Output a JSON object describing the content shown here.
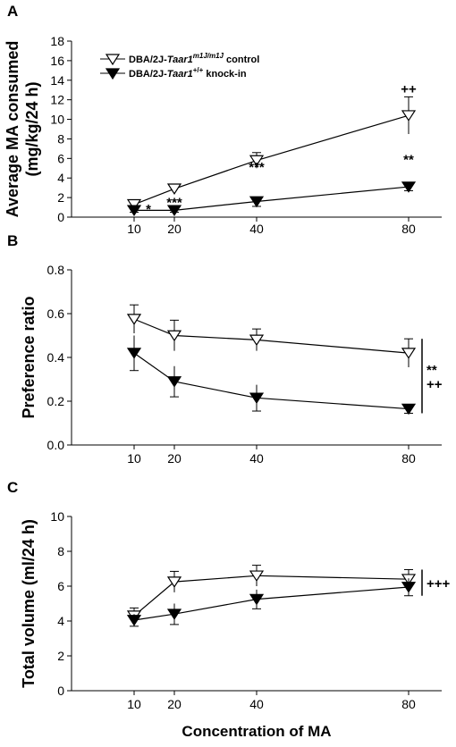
{
  "legend": {
    "control_prefix": "DBA/2J-",
    "control_italic": "Taar1",
    "control_sup": "m1J/m1J",
    "control_suffix": " control",
    "knockin_prefix": "DBA/2J-",
    "knockin_italic": "Taar1",
    "knockin_sup": "+/+",
    "knockin_suffix": " knock-in"
  },
  "xlabel": "Concentration of MA",
  "chart_data": [
    {
      "panel": "A",
      "type": "line",
      "ylabel_line1": "Average MA consumed",
      "ylabel_line2": "(mg/kg/24 h)",
      "ylim": [
        0,
        18
      ],
      "yticks": [
        0,
        2,
        4,
        6,
        8,
        10,
        12,
        14,
        16,
        18
      ],
      "x": [
        10,
        20,
        40,
        80
      ],
      "xticks": [
        "10",
        "20",
        "40",
        "80"
      ],
      "series": [
        {
          "name": "control",
          "marker": "open-triangle",
          "values": [
            1.3,
            2.9,
            5.8,
            10.4
          ],
          "err": [
            0.2,
            0.4,
            0.8,
            1.9
          ]
        },
        {
          "name": "knock-in",
          "marker": "filled-triangle",
          "values": [
            0.7,
            0.7,
            1.6,
            3.1
          ],
          "err": [
            0.2,
            0.2,
            0.5,
            0.4
          ]
        }
      ],
      "annotations": [
        {
          "text": "*",
          "x": 15,
          "y": 0.9
        },
        {
          "text": "***",
          "x": 20,
          "y": 1.6
        },
        {
          "text": "***",
          "x": 40,
          "y": 5.2
        },
        {
          "text": "**",
          "x": 80,
          "y": 6.0
        },
        {
          "text": "++",
          "x": 80,
          "y": 13.2
        }
      ]
    },
    {
      "panel": "B",
      "type": "line",
      "ylabel_line1": "Preference ratio",
      "ylim": [
        0,
        0.8
      ],
      "yticks": [
        "0.0",
        "0.2",
        "0.4",
        "0.6",
        "0.8"
      ],
      "x": [
        10,
        20,
        40,
        80
      ],
      "xticks": [
        "10",
        "20",
        "40",
        "80"
      ],
      "series": [
        {
          "name": "control",
          "marker": "open-triangle",
          "values": [
            0.575,
            0.5,
            0.48,
            0.42
          ],
          "err": [
            0.065,
            0.07,
            0.05,
            0.065
          ]
        },
        {
          "name": "knock-in",
          "marker": "filled-triangle",
          "values": [
            0.42,
            0.29,
            0.215,
            0.165
          ],
          "err": [
            0.08,
            0.07,
            0.06,
            0.02
          ]
        }
      ],
      "bracket_labels": [
        "**",
        "++"
      ]
    },
    {
      "panel": "C",
      "type": "line",
      "ylabel_line1": "Total volume (ml/24 h)",
      "ylim": [
        0,
        10
      ],
      "yticks": [
        0,
        2,
        4,
        6,
        8,
        10
      ],
      "x": [
        10,
        20,
        40,
        80
      ],
      "xticks": [
        "10",
        "20",
        "40",
        "80"
      ],
      "series": [
        {
          "name": "control",
          "marker": "open-triangle",
          "values": [
            4.3,
            6.25,
            6.6,
            6.4
          ],
          "err": [
            0.45,
            0.6,
            0.6,
            0.55
          ]
        },
        {
          "name": "knock-in",
          "marker": "filled-triangle",
          "values": [
            4.05,
            4.4,
            5.25,
            5.95
          ],
          "err": [
            0.35,
            0.6,
            0.55,
            0.5
          ]
        }
      ],
      "bracket_labels": [
        "+++"
      ]
    }
  ]
}
